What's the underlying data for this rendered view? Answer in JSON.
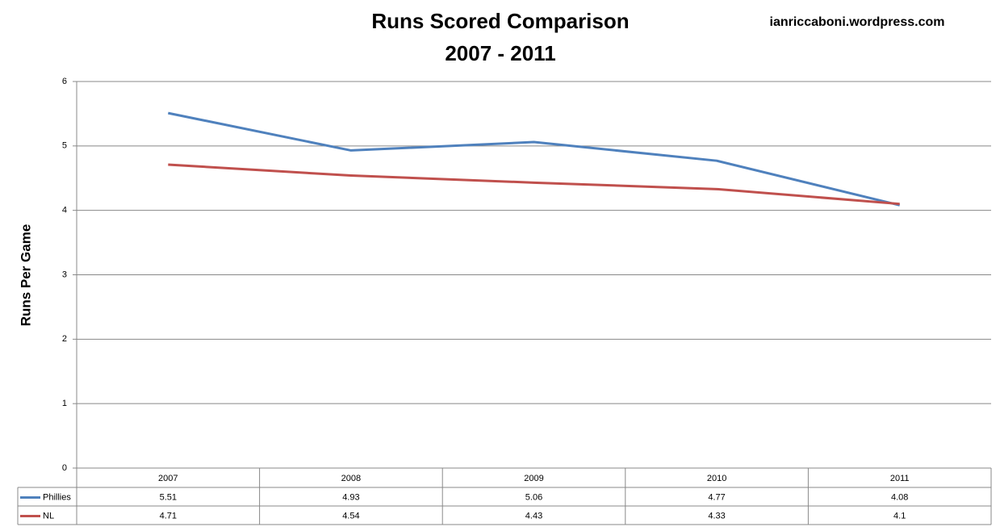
{
  "chart_data": {
    "type": "line",
    "title": "Runs Scored Comparison",
    "subtitle": "2007 - 2011",
    "annotation": "ianriccaboni.wordpress.com",
    "y_label": "Runs Per Game",
    "categories": [
      "2007",
      "2008",
      "2009",
      "2010",
      "2011"
    ],
    "series": [
      {
        "name": "Phillies",
        "color": "#4f81bd",
        "values": [
          5.51,
          4.93,
          5.06,
          4.77,
          4.08
        ]
      },
      {
        "name": "NL",
        "color": "#c0504d",
        "values": [
          4.71,
          4.54,
          4.43,
          4.33,
          4.1
        ]
      }
    ],
    "ylim": [
      0,
      6
    ],
    "yticks": [
      0,
      1,
      2,
      3,
      4,
      5,
      6
    ],
    "grid": true,
    "data_table": true
  }
}
